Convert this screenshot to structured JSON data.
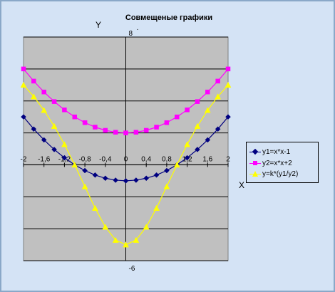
{
  "chart_data": {
    "type": "line",
    "title": "Совмещеные графики",
    "subtitle": ".",
    "xlabel": "X",
    "ylabel": "Y",
    "xlim": [
      -2,
      2
    ],
    "ylim": [
      -6,
      8
    ],
    "y_gridline_step": 2,
    "grid": true,
    "legend_position": "right",
    "plot_background": "#c0c0c0",
    "x": [
      -2,
      -1.8,
      -1.6,
      -1.4,
      -1.2,
      -1,
      -0.8,
      -0.6,
      -0.4,
      -0.2,
      0,
      0.2,
      0.4,
      0.6,
      0.8,
      1,
      1.2,
      1.4,
      1.6,
      1.8,
      2
    ],
    "x_tick_labels": [
      "-2",
      "-1,6",
      "-1,2",
      "-0,8",
      "-0,4",
      "0",
      "0,4",
      "0,8",
      "1,2",
      "1,6",
      "2"
    ],
    "y_tick_labels": [
      "8",
      "-6"
    ],
    "series": [
      {
        "name": "y1=x*x-1",
        "color": "#000080",
        "marker": "diamond",
        "values": [
          3,
          2.24,
          1.56,
          0.96,
          0.44,
          0,
          -0.36,
          -0.64,
          -0.84,
          -0.96,
          -1,
          -0.96,
          -0.84,
          -0.64,
          -0.36,
          0,
          0.44,
          0.96,
          1.56,
          2.24,
          3
        ]
      },
      {
        "name": "y2=x*x+2",
        "color": "#ff00ff",
        "marker": "square",
        "values": [
          6,
          5.24,
          4.56,
          3.96,
          3.44,
          3,
          2.64,
          2.36,
          2.16,
          2.04,
          2,
          2.04,
          2.16,
          2.36,
          2.64,
          3,
          3.44,
          3.96,
          4.56,
          5.24,
          6
        ]
      },
      {
        "name": "y=k*(y1/y2)",
        "color": "#ffff00",
        "marker": "triangle",
        "values": [
          5,
          4.27,
          3.42,
          2.42,
          1.28,
          0,
          -1.36,
          -2.71,
          -3.89,
          -4.71,
          -5,
          -4.71,
          -3.89,
          -2.71,
          -1.36,
          0,
          1.28,
          2.42,
          3.42,
          4.27,
          5
        ]
      }
    ]
  }
}
